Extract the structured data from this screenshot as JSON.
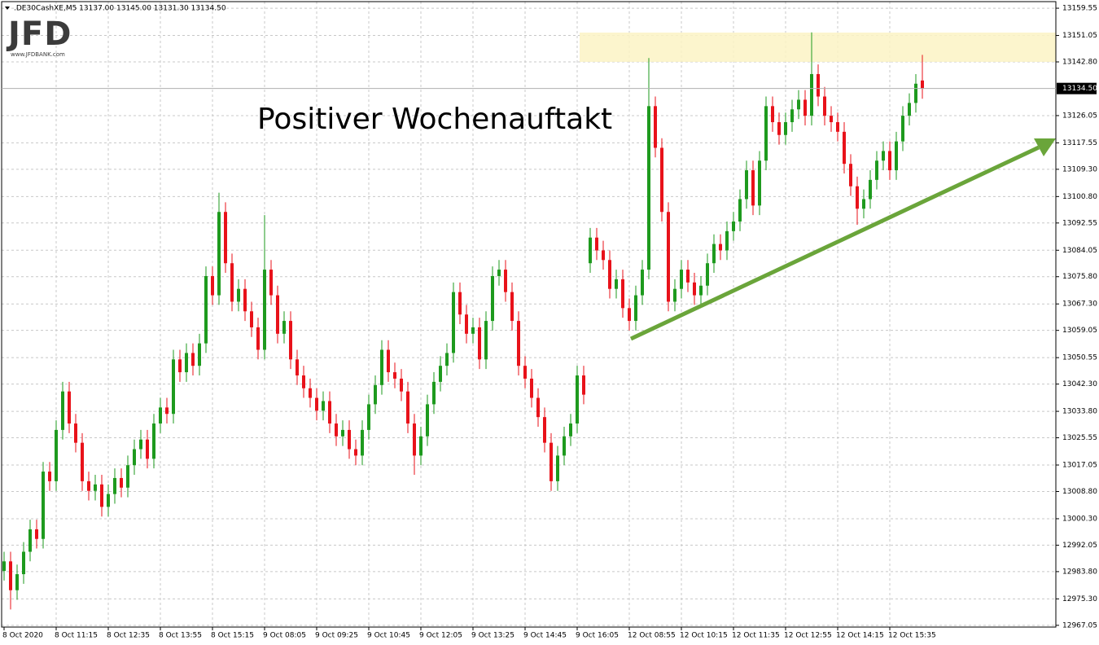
{
  "chart_data": {
    "type": "candlestick",
    "symbol_info": ".DE30CashXE,M5  13137.00 13145.00 13131.30 13134.50",
    "logo": "JFD",
    "logo_url": "www.JFDBANK.com",
    "annotation": "Positiver Wochenauftakt",
    "up_color": "#1e9a1e",
    "down_color": "#e8121a",
    "grid": true,
    "ylim": [
      12966.5,
      13161.6
    ],
    "yticks": [
      12967.05,
      {
        "value": 12975.3,
        "label": "12975.30"
      },
      {
        "value": 12983.8,
        "label": "12983.80"
      },
      12992.05,
      {
        "value": 13000.3,
        "label": "13000.30"
      },
      {
        "value": 13008.8,
        "label": "13008.80"
      },
      13017.05,
      13025.55,
      {
        "value": 13033.8,
        "label": "13033.80"
      },
      {
        "value": 13042.3,
        "label": "13042.30"
      },
      13050.55,
      13059.05,
      {
        "value": 13067.3,
        "label": "13067.30"
      },
      {
        "value": 13075.8,
        "label": "13075.80"
      },
      13084.05,
      13092.55,
      {
        "value": 13100.8,
        "label": "13100.80"
      },
      {
        "value": 13109.3,
        "label": "13109.30"
      },
      13117.55,
      13126.05,
      {
        "value": 13142.8,
        "label": "13142.80"
      },
      13151.05,
      13159.55
    ],
    "price_line": {
      "value": 13134.5,
      "label": "13134.50"
    },
    "time_labels": [
      "8 Oct 2020",
      "8 Oct 11:15",
      "8 Oct 12:35",
      "8 Oct 13:55",
      "8 Oct 15:15",
      "9 Oct 08:05",
      "9 Oct 09:25",
      "9 Oct 10:45",
      "9 Oct 12:05",
      "9 Oct 13:25",
      "9 Oct 14:45",
      "9 Oct 16:05",
      "12 Oct 08:55",
      "12 Oct 10:15",
      "12 Oct 11:35",
      "12 Oct 12:55",
      "12 Oct 14:15",
      "12 Oct 15:35"
    ],
    "open": [
      12984,
      12987,
      12978,
      12983,
      12990,
      12997,
      12994,
      13015,
      13012,
      13028,
      13040,
      13030,
      13024,
      13012,
      13009,
      13011,
      13004,
      13008,
      13013,
      13010,
      13017,
      13022,
      13025,
      13019,
      13030,
      13035,
      13033,
      13050,
      13046,
      13052,
      13048,
      13055,
      13076,
      13070,
      13096,
      13080,
      13068,
      13072,
      13065,
      13060,
      13053,
      13078,
      13070,
      13058,
      13062,
      13050,
      13045,
      13041,
      13038,
      13034,
      13037,
      13030,
      13026,
      13028,
      13022,
      13020,
      13028,
      13036,
      13042,
      13053,
      13046,
      13044,
      13040,
      13030,
      13020,
      13026,
      13036,
      13043,
      13048,
      13052,
      13071,
      13064,
      13058,
      13060,
      13050,
      13062,
      13076,
      13078,
      13071,
      13062,
      13048,
      13044,
      13038,
      13032,
      13024,
      13012,
      13020,
      13026,
      13030,
      13045,
      13080,
      13088,
      13084,
      13081,
      13072,
      13075,
      13066,
      13062,
      13070,
      13078,
      13129,
      13116,
      13096,
      13068,
      13072,
      13078,
      13074,
      13070,
      13073,
      13080,
      13086,
      13084,
      13090,
      13093,
      13100,
      13109,
      13098,
      13112,
      13129,
      13124,
      13120,
      13124,
      13128,
      13131,
      13126,
      13139,
      13132,
      13126,
      13124,
      13121,
      13111,
      13104,
      13097,
      13100,
      13106,
      13112,
      13115,
      13109,
      13118,
      13126,
      13130,
      13137
    ],
    "high": [
      12990,
      12990,
      12986,
      12993,
      13000,
      13000,
      13018,
      13018,
      13031,
      13043,
      13043,
      13033,
      13027,
      13015,
      13014,
      13014,
      13011,
      13016,
      13016,
      13020,
      13025,
      13028,
      13028,
      13033,
      13038,
      13038,
      13053,
      13053,
      13055,
      13055,
      13058,
      13079,
      13079,
      13102,
      13099,
      13083,
      13075,
      13075,
      13068,
      13063,
      13095,
      13081,
      13073,
      13065,
      13065,
      13053,
      13048,
      13044,
      13041,
      13040,
      13040,
      13033,
      13031,
      13031,
      13025,
      13031,
      13039,
      13045,
      13056,
      13056,
      13049,
      13047,
      13043,
      13033,
      13029,
      13039,
      13046,
      13051,
      13055,
      13074,
      13074,
      13067,
      13063,
      13063,
      13065,
      13079,
      13081,
      13081,
      13074,
      13065,
      13051,
      13047,
      13041,
      13035,
      13027,
      13023,
      13029,
      13033,
      13048,
      13048,
      13091,
      13091,
      13087,
      13084,
      13078,
      13078,
      13069,
      13073,
      13081,
      13144,
      13132,
      13119,
      13099,
      13075,
      13081,
      13081,
      13077,
      13076,
      13083,
      13089,
      13089,
      13093,
      13096,
      13103,
      13112,
      13112,
      13115,
      13132,
      13132,
      13127,
      13127,
      13131,
      13134,
      13134,
      13152,
      13142,
      13135,
      13129,
      13127,
      13124,
      13114,
      13107,
      13103,
      13109,
      13115,
      13118,
      13118,
      13121,
      13129,
      13133,
      13139,
      13145
    ],
    "low": [
      12981,
      12972,
      12975,
      12980,
      12987,
      12991,
      12991,
      13009,
      13009,
      13025,
      13027,
      13021,
      13009,
      13006,
      13006,
      13001,
      13001,
      13005,
      13007,
      13007,
      13014,
      13019,
      13016,
      13016,
      13027,
      13030,
      13030,
      13043,
      13043,
      13045,
      13045,
      13052,
      13067,
      13067,
      13077,
      13065,
      13065,
      13062,
      13057,
      13050,
      13050,
      13067,
      13055,
      13055,
      13047,
      13042,
      13038,
      13035,
      13031,
      13031,
      13027,
      13023,
      13023,
      13019,
      13017,
      13017,
      13025,
      13033,
      13039,
      13043,
      13041,
      13037,
      13027,
      13014,
      13017,
      13023,
      13033,
      13040,
      13045,
      13049,
      13061,
      13055,
      13055,
      13047,
      13047,
      13059,
      13073,
      13068,
      13059,
      13045,
      13041,
      13035,
      13029,
      13021,
      13009,
      13009,
      13017,
      13023,
      13027,
      13036,
      13077,
      13081,
      13078,
      13069,
      13069,
      13063,
      13059,
      13059,
      13067,
      13075,
      13113,
      13093,
      13065,
      13065,
      13069,
      13071,
      13067,
      13067,
      13070,
      13077,
      13081,
      13081,
      13087,
      13090,
      13097,
      13095,
      13095,
      13109,
      13121,
      13117,
      13117,
      13121,
      13125,
      13123,
      13123,
      13129,
      13123,
      13121,
      13118,
      13108,
      13101,
      13092,
      13094,
      13097,
      13103,
      13109,
      13106,
      13106,
      13115,
      13123,
      13127,
      13131.3
    ],
    "close": [
      12987,
      12978,
      12983,
      12990,
      12997,
      12994,
      13015,
      13012,
      13028,
      13040,
      13030,
      13024,
      13012,
      13009,
      13011,
      13004,
      13008,
      13013,
      13010,
      13017,
      13022,
      13025,
      13019,
      13030,
      13035,
      13033,
      13050,
      13046,
      13052,
      13048,
      13055,
      13076,
      13070,
      13096,
      13080,
      13068,
      13072,
      13065,
      13060,
      13053,
      13078,
      13070,
      13058,
      13062,
      13050,
      13045,
      13041,
      13038,
      13034,
      13037,
      13030,
      13026,
      13028,
      13022,
      13020,
      13028,
      13036,
      13042,
      13053,
      13046,
      13044,
      13040,
      13030,
      13020,
      13026,
      13036,
      13043,
      13048,
      13052,
      13071,
      13064,
      13058,
      13060,
      13050,
      13062,
      13076,
      13078,
      13071,
      13062,
      13048,
      13044,
      13038,
      13032,
      13024,
      13012,
      13020,
      13026,
      13030,
      13045,
      13039,
      13088,
      13084,
      13081,
      13072,
      13075,
      13066,
      13062,
      13070,
      13078,
      13129,
      13116,
      13096,
      13068,
      13072,
      13078,
      13074,
      13070,
      13073,
      13080,
      13086,
      13084,
      13090,
      13093,
      13100,
      13109,
      13098,
      13112,
      13129,
      13124,
      13120,
      13124,
      13128,
      13131,
      13126,
      13139,
      13132,
      13126,
      13124,
      13121,
      13111,
      13104,
      13097,
      13100,
      13106,
      13112,
      13115,
      13109,
      13118,
      13126,
      13130,
      13136,
      13134.5
    ]
  }
}
